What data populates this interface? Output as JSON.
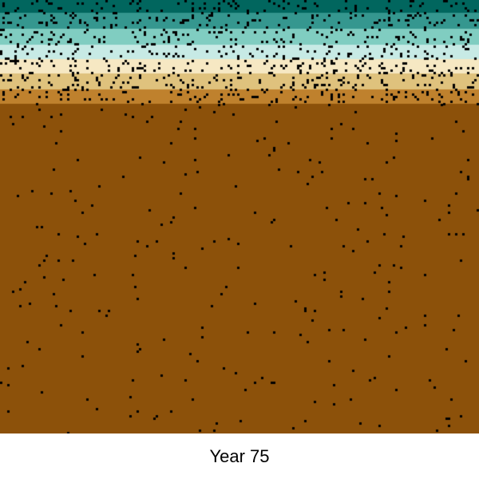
{
  "caption": {
    "year_label": "Year 75"
  },
  "simulation": {
    "strata": [
      {
        "name": "deep-teal",
        "color": "#01665e",
        "share": 0.03
      },
      {
        "name": "teal",
        "color": "#35978f",
        "share": 0.036
      },
      {
        "name": "light-teal",
        "color": "#80cdc1",
        "share": 0.036
      },
      {
        "name": "pale-aqua",
        "color": "#c7eae5",
        "share": 0.033
      },
      {
        "name": "cream",
        "color": "#f6e8c3",
        "share": 0.034
      },
      {
        "name": "tan",
        "color": "#dfc27d",
        "share": 0.036
      },
      {
        "name": "ochre",
        "color": "#bf812d",
        "share": 0.034
      },
      {
        "name": "brown",
        "color": "#8c510a",
        "share": 0.761
      }
    ],
    "speck_color": "#000000"
  }
}
